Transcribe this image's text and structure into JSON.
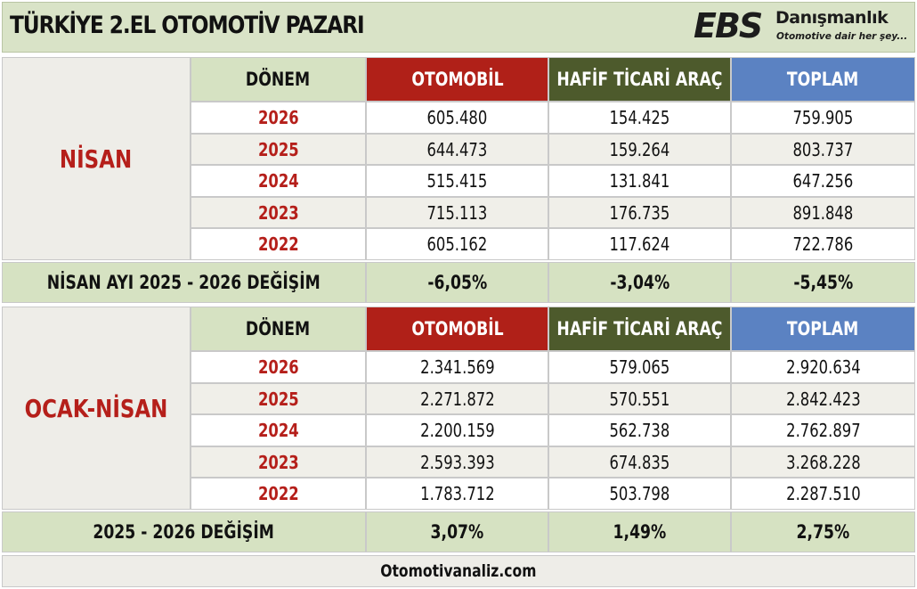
{
  "title": "TÜRKİYE 2.EL OTOMOTİV PAZARI",
  "logo": {
    "mark": "EBS",
    "name": "Danışmanlık",
    "tagline": "Otomotive dair her şey..."
  },
  "headers": {
    "period": "DÖNEM",
    "car": "OTOMOBİL",
    "lcv": "HAFİF TİCARİ ARAÇ",
    "total": "TOPLAM"
  },
  "sections": [
    {
      "label": "NİSAN",
      "rows": [
        {
          "year": "2026",
          "car": "605.480",
          "lcv": "154.425",
          "total": "759.905"
        },
        {
          "year": "2025",
          "car": "644.473",
          "lcv": "159.264",
          "total": "803.737"
        },
        {
          "year": "2024",
          "car": "515.415",
          "lcv": "131.841",
          "total": "647.256"
        },
        {
          "year": "2023",
          "car": "715.113",
          "lcv": "176.735",
          "total": "891.848"
        },
        {
          "year": "2022",
          "car": "605.162",
          "lcv": "117.624",
          "total": "722.786"
        }
      ],
      "change": {
        "label": "NİSAN AYI  2025 - 2026 DEĞİŞİM",
        "car": "-6,05%",
        "lcv": "-3,04%",
        "total": "-5,45%"
      }
    },
    {
      "label": "OCAK-NİSAN",
      "rows": [
        {
          "year": "2026",
          "car": "2.341.569",
          "lcv": "579.065",
          "total": "2.920.634"
        },
        {
          "year": "2025",
          "car": "2.271.872",
          "lcv": "570.551",
          "total": "2.842.423"
        },
        {
          "year": "2024",
          "car": "2.200.159",
          "lcv": "562.738",
          "total": "2.762.897"
        },
        {
          "year": "2023",
          "car": "2.593.393",
          "lcv": "674.835",
          "total": "3.268.228"
        },
        {
          "year": "2022",
          "car": "1.783.712",
          "lcv": "503.798",
          "total": "2.287.510"
        }
      ],
      "change": {
        "label": "2025 - 2026 DEĞİŞİM",
        "car": "3,07%",
        "lcv": "1,49%",
        "total": "2,75%"
      }
    }
  ],
  "footer": "Otomotivanaliz.com",
  "colors": {
    "car_header": "#b02018",
    "lcv_header": "#4d5a2c",
    "total_header": "#5b82c2",
    "accent_red": "#b51f1a",
    "header_band": "#d9e3c7"
  }
}
